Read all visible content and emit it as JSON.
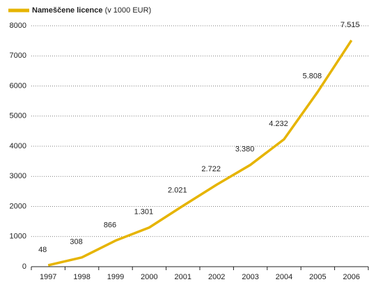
{
  "chart_data": {
    "type": "line",
    "series": [
      {
        "name": "Nameščene licence",
        "color": "#e6b400",
        "values": [
          48,
          308,
          866,
          1301,
          2021,
          2722,
          3380,
          4232,
          5808,
          7515
        ],
        "value_labels": [
          "48",
          "308",
          "866",
          "1.301",
          "2.021",
          "2.722",
          "3.380",
          "4.232",
          "5.808",
          "7.515"
        ]
      }
    ],
    "unit_note": "(v 1000 EUR)",
    "categories": [
      "1997",
      "1998",
      "1999",
      "2000",
      "2001",
      "2002",
      "2003",
      "2004",
      "2005",
      "2006"
    ],
    "ylim": [
      0,
      8000
    ],
    "yticks": [
      0,
      1000,
      2000,
      3000,
      4000,
      5000,
      6000,
      7000,
      8000
    ],
    "grid": true
  }
}
